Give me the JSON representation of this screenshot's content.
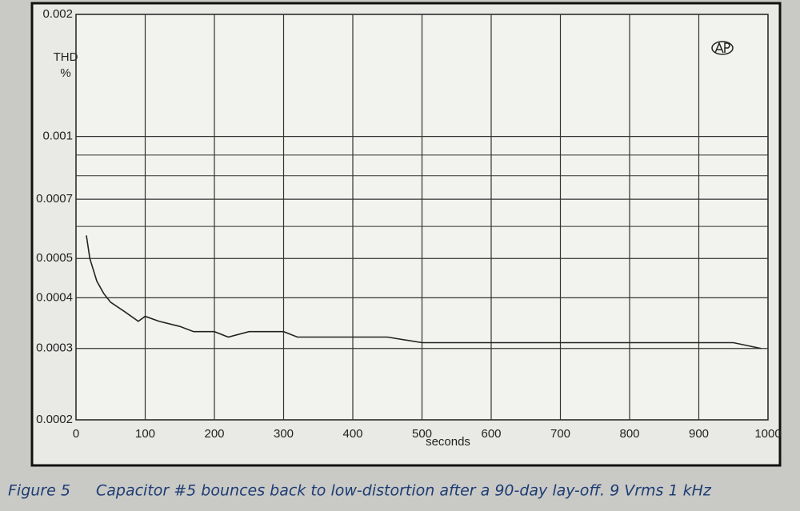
{
  "chart_data": {
    "type": "line",
    "ylabel": [
      "THD",
      "%"
    ],
    "xlabel": "seconds",
    "figure_label": "Figure 5",
    "caption": "Capacitor #5 bounces back to low-distortion after a 90-day lay-off. 9 Vrms 1 kHz",
    "log_y": true,
    "grid": true,
    "xlim": [
      0,
      1000
    ],
    "xticks": [
      0,
      100,
      200,
      300,
      400,
      500,
      600,
      700,
      800,
      900,
      1000
    ],
    "ylim": [
      0.0002,
      0.002
    ],
    "yticks": [
      0.0002,
      0.0003,
      0.0004,
      0.0005,
      0.0007,
      0.001,
      0.002
    ],
    "minor_yticks": [
      0.0006,
      0.0008,
      0.0009
    ],
    "series": [
      {
        "color": "#222222",
        "x": [
          15,
          20,
          30,
          40,
          50,
          70,
          90,
          100,
          120,
          150,
          170,
          200,
          220,
          250,
          280,
          300,
          320,
          350,
          380,
          400,
          450,
          500,
          550,
          600,
          650,
          700,
          750,
          800,
          850,
          900,
          950,
          990
        ],
        "values": [
          0.00057,
          0.0005,
          0.00044,
          0.00041,
          0.00039,
          0.00037,
          0.00035,
          0.00036,
          0.00035,
          0.00034,
          0.00033,
          0.00033,
          0.00032,
          0.00033,
          0.00033,
          0.00033,
          0.00032,
          0.00032,
          0.00032,
          0.00032,
          0.00032,
          0.00031,
          0.00031,
          0.00031,
          0.00031,
          0.00031,
          0.00031,
          0.00031,
          0.00031,
          0.00031,
          0.00031,
          0.0003
        ]
      }
    ]
  }
}
